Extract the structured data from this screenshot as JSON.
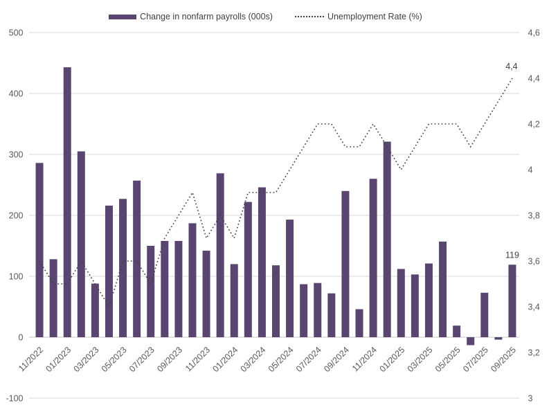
{
  "legend": {
    "bars_label": "Change in nonfarm payrolls (000s)",
    "line_label": "Unemployment Rate (%)"
  },
  "colors": {
    "bar": "#5a4570",
    "line": "#3f3f3f",
    "grid": "#d9d9d9",
    "zero_axis": "#c6c6c6",
    "axis_text": "#595959",
    "label_text": "#404040",
    "background": "#ffffff"
  },
  "left_axis": {
    "ticks": [
      "500",
      "400",
      "300",
      "200",
      "100",
      "0",
      "-100"
    ]
  },
  "right_axis": {
    "ticks": [
      "4,6",
      "4,4",
      "4,2",
      "4",
      "3,8",
      "3,6",
      "3,4",
      "3,2",
      "3"
    ]
  },
  "data_labels": {
    "last_bar": "119",
    "last_point": "4,4"
  },
  "chart_data": {
    "type": "bar+line",
    "categories": [
      "11/2022",
      "12/2022",
      "01/2023",
      "02/2023",
      "03/2023",
      "04/2023",
      "05/2023",
      "06/2023",
      "07/2023",
      "08/2023",
      "09/2023",
      "10/2023",
      "11/2023",
      "12/2023",
      "01/2024",
      "02/2024",
      "03/2024",
      "04/2024",
      "05/2024",
      "06/2024",
      "07/2024",
      "08/2024",
      "09/2024",
      "10/2024",
      "11/2024",
      "12/2024",
      "01/2025",
      "02/2025",
      "03/2025",
      "04/2025",
      "05/2025",
      "06/2025",
      "07/2025",
      "08/2025",
      "09/2025"
    ],
    "x_tick_step": 2,
    "series": [
      {
        "name": "Change in nonfarm payrolls (000s)",
        "type": "bar",
        "axis": "left",
        "values": [
          286,
          128,
          443,
          305,
          88,
          216,
          227,
          257,
          150,
          158,
          158,
          187,
          142,
          269,
          120,
          222,
          246,
          118,
          193,
          87,
          89,
          72,
          240,
          46,
          260,
          321,
          112,
          103,
          121,
          157,
          19,
          -13,
          73,
          -4,
          119
        ]
      },
      {
        "name": "Unemployment Rate (%)",
        "type": "line",
        "style": "dotted",
        "axis": "right",
        "values": [
          3.6,
          3.5,
          3.5,
          3.6,
          3.5,
          3.4,
          3.6,
          3.6,
          3.5,
          3.7,
          3.8,
          3.9,
          3.7,
          3.8,
          3.7,
          3.9,
          3.9,
          3.9,
          4.0,
          4.1,
          4.2,
          4.2,
          4.1,
          4.1,
          4.2,
          4.1,
          4.0,
          4.1,
          4.2,
          4.2,
          4.2,
          4.1,
          4.2,
          4.3,
          4.4
        ]
      }
    ],
    "left_ylim": [
      -100,
      500
    ],
    "right_ylim": [
      3,
      4.6
    ],
    "grid": true,
    "legend_position": "top"
  }
}
